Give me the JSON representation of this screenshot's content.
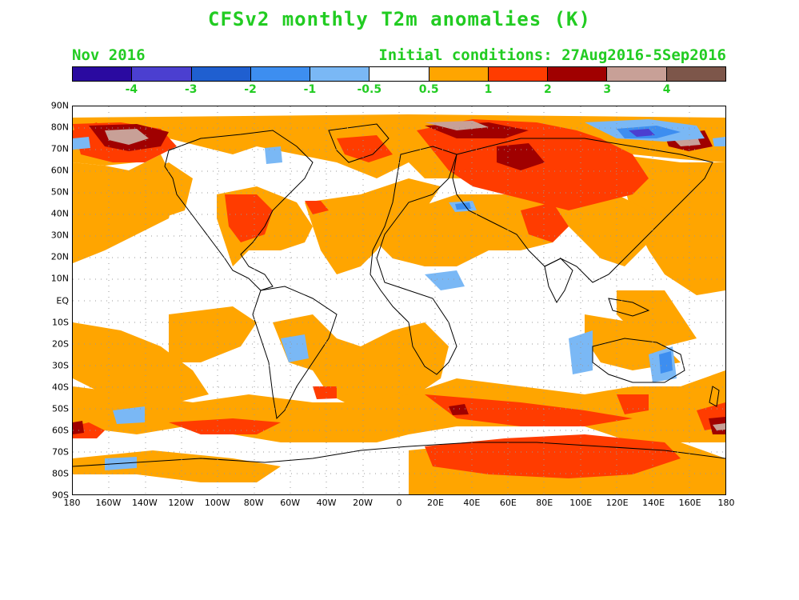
{
  "title": "CFSv2 monthly T2m anomalies (K)",
  "subtitle_left": "Nov 2016",
  "subtitle_right": "Initial conditions: 27Aug2016-5Sep2016",
  "colorbar": {
    "colors": [
      "#2a0aa0",
      "#4b3fd0",
      "#1f5fd0",
      "#3d8ef0",
      "#7ab8f5",
      "#ffffff",
      "#ffa500",
      "#ff3c00",
      "#a00000",
      "#c8a097",
      "#7d564a"
    ],
    "labels": [
      "-4",
      "-3",
      "-2",
      "-1",
      "-0.5",
      "0.5",
      "1",
      "2",
      "3",
      "4"
    ]
  },
  "lat_labels": [
    "90N",
    "80N",
    "70N",
    "60N",
    "50N",
    "40N",
    "30N",
    "20N",
    "10N",
    "EQ",
    "10S",
    "20S",
    "30S",
    "40S",
    "50S",
    "60S",
    "70S",
    "80S",
    "90S"
  ],
  "lon_labels": [
    "180",
    "160W",
    "140W",
    "120W",
    "100W",
    "80W",
    "60W",
    "40W",
    "20W",
    "0",
    "20E",
    "40E",
    "60E",
    "80E",
    "100E",
    "120E",
    "140E",
    "160E",
    "180"
  ]
}
